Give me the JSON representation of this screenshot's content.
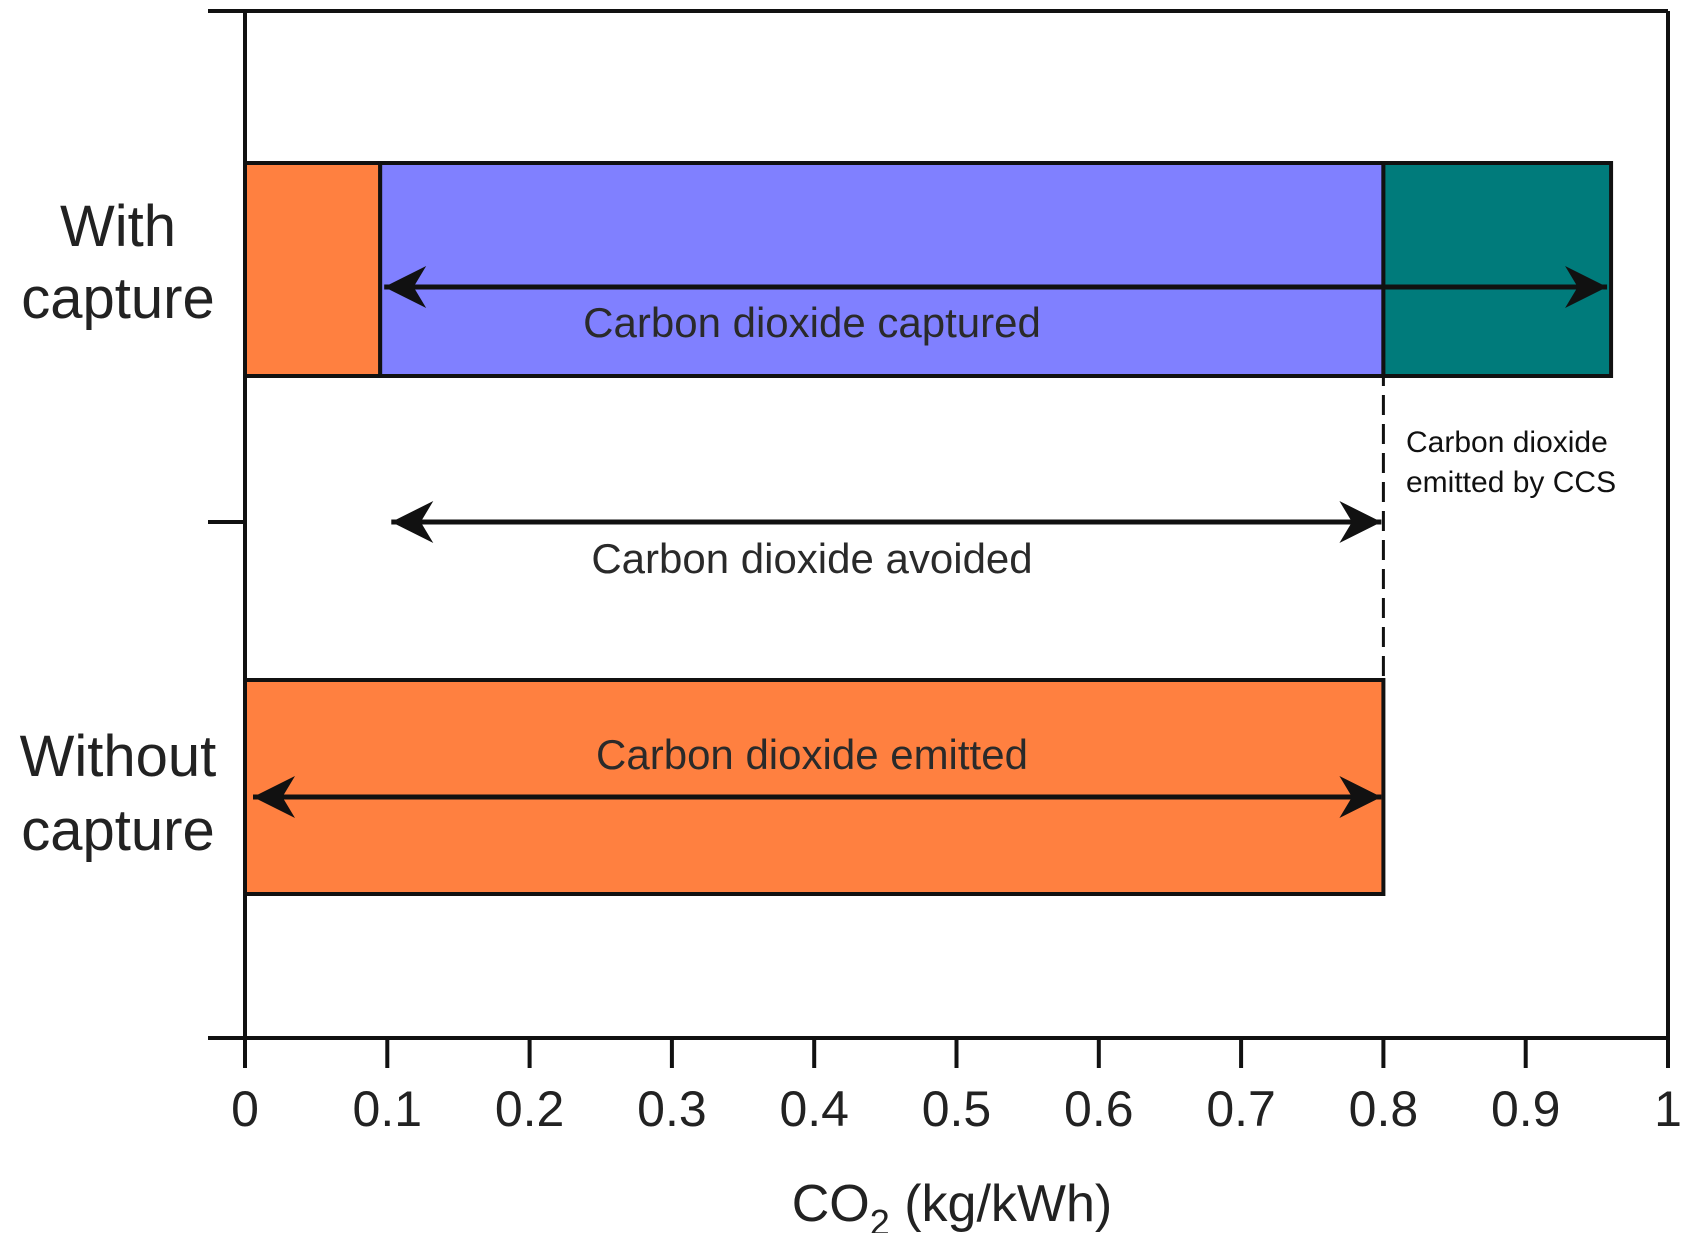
{
  "chart_data": {
    "type": "bar",
    "orientation": "horizontal",
    "xlabel_main": "CO",
    "xlabel_sub": "2",
    "xlabel_units": " (kg/kWh)",
    "xlim": [
      0,
      1
    ],
    "xticks": [
      "0",
      "0.1",
      "0.2",
      "0.3",
      "0.4",
      "0.5",
      "0.6",
      "0.7",
      "0.8",
      "0.9",
      "1"
    ],
    "categories": [
      {
        "label_line1": "With",
        "label_line2": "capture"
      },
      {
        "label_line1": "Without",
        "label_line2": "capture"
      }
    ],
    "bars": [
      {
        "category": 0,
        "start": 0,
        "end": 0.095,
        "color": "#FF8040"
      },
      {
        "category": 0,
        "start": 0.095,
        "end": 0.8,
        "color": "#8080FF"
      },
      {
        "category": 0,
        "start": 0.8,
        "end": 0.96,
        "color": "#007B7B"
      },
      {
        "category": 1,
        "start": 0,
        "end": 0.8,
        "color": "#FF8040"
      }
    ],
    "arrows": [
      {
        "label": "Carbon dioxide captured",
        "start": 0.095,
        "end": 0.96,
        "position": "with-capture-bar"
      },
      {
        "label": "Carbon dioxide avoided",
        "start": 0.1,
        "end": 0.8,
        "position": "between-bars"
      },
      {
        "label": "Carbon dioxide emitted",
        "start": 0,
        "end": 0.8,
        "position": "without-capture-bar"
      }
    ],
    "reference_line": {
      "x": 0.8,
      "style": "dashed"
    },
    "side_annotation": {
      "line1": "Carbon dioxide",
      "line2": "emitted by CCS"
    },
    "grid": false
  }
}
